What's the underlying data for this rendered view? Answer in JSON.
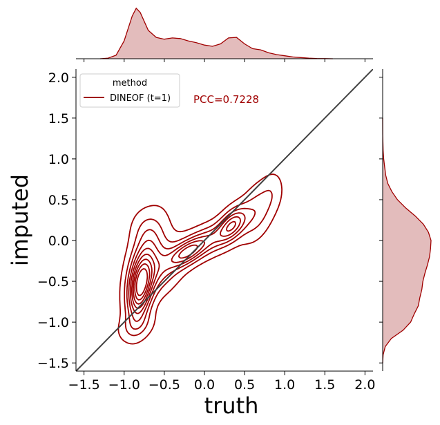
{
  "chart_data": {
    "type": "scatter",
    "subtype": "joint-kde-contour",
    "xlabel": "truth",
    "ylabel": "imputed",
    "xlim": [
      -1.6,
      2.1
    ],
    "ylim": [
      -1.6,
      2.1
    ],
    "xticks": [
      -1.5,
      -1.0,
      -0.5,
      0.0,
      0.5,
      1.0,
      1.5,
      2.0
    ],
    "yticks": [
      -1.5,
      -1.0,
      -0.5,
      0.0,
      0.5,
      1.0,
      1.5,
      2.0
    ],
    "xtick_labels": [
      "−1.5",
      "−1.0",
      "−0.5",
      "0.0",
      "0.5",
      "1.0",
      "1.5",
      "2.0"
    ],
    "ytick_labels": [
      "−1.5",
      "−1.0",
      "−0.5",
      "0.0",
      "0.5",
      "1.0",
      "1.5",
      "2.0"
    ],
    "grid": false,
    "color": "#a00000",
    "fill_color": "#e3bcbc",
    "identity_line": {
      "x": [
        -1.6,
        2.1
      ],
      "y": [
        -1.6,
        2.1
      ],
      "color": "#404040"
    },
    "legend": {
      "title": "method",
      "entries": [
        "DINEOF (t=1)"
      ],
      "placement": "top-left"
    },
    "annotation": "PCC=0.7228",
    "contour_levels": 9,
    "kde_modes": [
      {
        "x": -0.78,
        "y": -0.55,
        "weight": 1.0
      },
      {
        "x": -0.22,
        "y": -0.15,
        "weight": 0.5
      },
      {
        "x": 0.35,
        "y": 0.2,
        "weight": 0.6
      },
      {
        "x": 0.75,
        "y": 0.45,
        "weight": 0.3
      }
    ],
    "marginal_x": {
      "x": [
        -1.3,
        -1.2,
        -1.1,
        -1.0,
        -0.9,
        -0.85,
        -0.8,
        -0.7,
        -0.6,
        -0.5,
        -0.4,
        -0.3,
        -0.2,
        -0.1,
        0.0,
        0.1,
        0.2,
        0.3,
        0.4,
        0.5,
        0.6,
        0.7,
        0.8,
        0.9,
        1.0,
        1.1,
        1.2,
        1.3,
        1.4,
        1.5,
        1.6
      ],
      "density": [
        0.0,
        0.01,
        0.06,
        0.3,
        0.72,
        0.85,
        0.78,
        0.48,
        0.36,
        0.33,
        0.35,
        0.34,
        0.3,
        0.27,
        0.23,
        0.21,
        0.25,
        0.35,
        0.36,
        0.25,
        0.17,
        0.15,
        0.1,
        0.07,
        0.05,
        0.03,
        0.02,
        0.01,
        0.005,
        0.002,
        0.0
      ]
    },
    "marginal_y": {
      "y": [
        -1.5,
        -1.4,
        -1.3,
        -1.2,
        -1.1,
        -1.0,
        -0.9,
        -0.8,
        -0.7,
        -0.6,
        -0.5,
        -0.4,
        -0.3,
        -0.2,
        -0.1,
        0.0,
        0.1,
        0.2,
        0.3,
        0.4,
        0.5,
        0.6,
        0.7,
        0.8,
        0.9,
        1.0,
        1.1,
        1.2,
        1.3,
        1.5
      ],
      "density": [
        0.0,
        0.01,
        0.05,
        0.17,
        0.4,
        0.55,
        0.62,
        0.7,
        0.73,
        0.77,
        0.79,
        0.83,
        0.88,
        0.92,
        0.94,
        0.95,
        0.9,
        0.8,
        0.64,
        0.45,
        0.29,
        0.18,
        0.1,
        0.06,
        0.04,
        0.02,
        0.01,
        0.005,
        0.002,
        0.0
      ]
    }
  }
}
